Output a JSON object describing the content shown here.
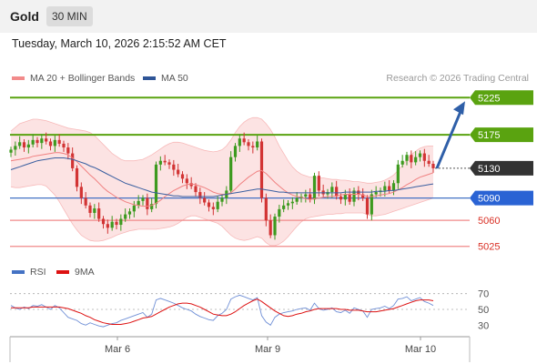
{
  "header": {
    "symbol": "Gold",
    "timeframe": "30 MIN"
  },
  "datetime": "Tuesday, March 10, 2026 2:15:52 AM CET",
  "legend": {
    "ma20": {
      "label": "MA 20 + Bollinger Bands",
      "color": "#f28b8b"
    },
    "ma50": {
      "label": "MA 50",
      "color": "#2f5597"
    }
  },
  "credit": "Research © 2026 Trading Central",
  "chart_data": {
    "type": "candlestick",
    "price_ylim": [
      5010,
      5240
    ],
    "x_ticks": [
      "Mar 6",
      "Mar 9",
      "Mar 10"
    ],
    "levels": [
      {
        "label": "5225",
        "value": 5225,
        "kind": "resistance",
        "color": "#5aa310"
      },
      {
        "label": "5175",
        "value": 5175,
        "kind": "resistance",
        "color": "#5aa310"
      },
      {
        "label": "5130",
        "value": 5130,
        "kind": "last",
        "color": "#333333"
      },
      {
        "label": "5090",
        "value": 5090,
        "kind": "pivot",
        "color": "#4472c4"
      },
      {
        "label": "5060",
        "value": 5060,
        "kind": "support",
        "color": "#e05050"
      },
      {
        "label": "5025",
        "value": 5025,
        "kind": "support",
        "color": "#e05050"
      }
    ],
    "closes": [
      5155,
      5160,
      5165,
      5158,
      5162,
      5168,
      5164,
      5170,
      5166,
      5160,
      5168,
      5163,
      5158,
      5150,
      5130,
      5105,
      5090,
      5080,
      5070,
      5076,
      5062,
      5055,
      5050,
      5058,
      5054,
      5062,
      5068,
      5072,
      5080,
      5086,
      5090,
      5075,
      5082,
      5135,
      5140,
      5138,
      5135,
      5128,
      5122,
      5116,
      5110,
      5106,
      5098,
      5090,
      5084,
      5078,
      5075,
      5085,
      5090,
      5100,
      5145,
      5160,
      5170,
      5165,
      5160,
      5158,
      5166,
      5090,
      5060,
      5040,
      5065,
      5075,
      5080,
      5083,
      5085,
      5090,
      5092,
      5095,
      5088,
      5120,
      5100,
      5095,
      5098,
      5105,
      5092,
      5088,
      5095,
      5085,
      5100,
      5095,
      5090,
      5068,
      5095,
      5098,
      5100,
      5106,
      5100,
      5110,
      5135,
      5140,
      5148,
      5138,
      5145,
      5150,
      5140,
      5136,
      5130
    ],
    "ma20": [
      5140,
      5141,
      5142,
      5143,
      5144,
      5146,
      5147,
      5148,
      5149,
      5150,
      5151,
      5151,
      5150,
      5148,
      5144,
      5139,
      5133,
      5127,
      5121,
      5116,
      5110,
      5104,
      5099,
      5095,
      5091,
      5088,
      5085,
      5083,
      5081,
      5080,
      5079,
      5079,
      5080,
      5083,
      5087,
      5092,
      5096,
      5100,
      5103,
      5106,
      5108,
      5109,
      5108,
      5106,
      5104,
      5101,
      5098,
      5096,
      5095,
      5095,
      5097,
      5102,
      5108,
      5113,
      5118,
      5122,
      5126,
      5127,
      5123,
      5117,
      5111,
      5106,
      5101,
      5097,
      5094,
      5092,
      5091,
      5089,
      5088,
      5089,
      5090,
      5091,
      5092,
      5092,
      5093,
      5094,
      5095,
      5095,
      5095,
      5095,
      5094,
      5092,
      5092,
      5093,
      5094,
      5095,
      5096,
      5098,
      5101,
      5104,
      5108,
      5111,
      5115,
      5118,
      5120,
      5122,
      5124
    ],
    "ma50": [
      5128,
      5130,
      5132,
      5134,
      5136,
      5138,
      5140,
      5141,
      5142,
      5143,
      5144,
      5144,
      5144,
      5143,
      5142,
      5140,
      5138,
      5136,
      5133,
      5131,
      5128,
      5125,
      5122,
      5119,
      5116,
      5113,
      5110,
      5108,
      5106,
      5104,
      5102,
      5100,
      5098,
      5097,
      5096,
      5095,
      5094,
      5093,
      5093,
      5092,
      5092,
      5092,
      5092,
      5092,
      5092,
      5092,
      5092,
      5093,
      5094,
      5095,
      5096,
      5097,
      5098,
      5099,
      5100,
      5101,
      5102,
      5102,
      5101,
      5100,
      5099,
      5098,
      5098,
      5097,
      5097,
      5097,
      5097,
      5097,
      5097,
      5097,
      5097,
      5097,
      5097,
      5097,
      5097,
      5097,
      5098,
      5098,
      5098,
      5098,
      5098,
      5098,
      5098,
      5099,
      5099,
      5099,
      5100,
      5100,
      5101,
      5102,
      5103,
      5104,
      5105,
      5106,
      5107,
      5108,
      5109
    ],
    "bb_upper": [
      5180,
      5185,
      5190,
      5192,
      5194,
      5196,
      5196,
      5195,
      5194,
      5192,
      5190,
      5188,
      5186,
      5184,
      5183,
      5182,
      5181,
      5180,
      5178,
      5174,
      5168,
      5162,
      5156,
      5150,
      5146,
      5142,
      5140,
      5140,
      5140,
      5141,
      5142,
      5145,
      5148,
      5152,
      5156,
      5160,
      5163,
      5165,
      5165,
      5164,
      5162,
      5160,
      5158,
      5156,
      5154,
      5153,
      5152,
      5153,
      5155,
      5160,
      5168,
      5178,
      5186,
      5192,
      5196,
      5198,
      5198,
      5196,
      5190,
      5182,
      5172,
      5160,
      5150,
      5140,
      5132,
      5126,
      5122,
      5120,
      5118,
      5118,
      5117,
      5117,
      5116,
      5115,
      5115,
      5114,
      5114,
      5113,
      5112,
      5112,
      5111,
      5110,
      5110,
      5111,
      5112,
      5114,
      5117,
      5121,
      5127,
      5134,
      5142,
      5148,
      5153,
      5157,
      5159,
      5160,
      5160
    ],
    "bb_lower": [
      5105,
      5104,
      5104,
      5105,
      5106,
      5107,
      5108,
      5108,
      5106,
      5100,
      5094,
      5085,
      5075,
      5065,
      5055,
      5047,
      5040,
      5036,
      5033,
      5032,
      5032,
      5033,
      5035,
      5037,
      5040,
      5042,
      5044,
      5046,
      5047,
      5048,
      5048,
      5048,
      5048,
      5048,
      5049,
      5050,
      5051,
      5053,
      5056,
      5060,
      5064,
      5066,
      5066,
      5064,
      5062,
      5060,
      5058,
      5056,
      5052,
      5046,
      5040,
      5036,
      5034,
      5033,
      5034,
      5036,
      5038,
      5036,
      5030,
      5026,
      5026,
      5028,
      5032,
      5038,
      5045,
      5052,
      5058,
      5062,
      5064,
      5065,
      5066,
      5067,
      5068,
      5068,
      5069,
      5069,
      5070,
      5070,
      5070,
      5070,
      5070,
      5068,
      5066,
      5066,
      5067,
      5068,
      5070,
      5072,
      5074,
      5076,
      5078,
      5080,
      5082,
      5084,
      5086,
      5088,
      5090
    ],
    "projection": {
      "from": 5130,
      "to": 5225
    },
    "rsi": {
      "legend_rsi": {
        "label": "RSI",
        "color": "#4472c4"
      },
      "legend_ma": {
        "label": "9MA",
        "color": "#dd1111"
      },
      "ylim": [
        20,
        80
      ],
      "ticks": [
        "70",
        "50",
        "30"
      ],
      "rsi_values": [
        55,
        52,
        50,
        53,
        51,
        55,
        54,
        56,
        53,
        50,
        55,
        52,
        46,
        40,
        38,
        36,
        32,
        30,
        33,
        31,
        29,
        28,
        30,
        32,
        33,
        36,
        38,
        40,
        42,
        44,
        46,
        40,
        44,
        62,
        64,
        62,
        60,
        58,
        55,
        52,
        50,
        48,
        44,
        41,
        39,
        37,
        36,
        42,
        45,
        50,
        63,
        66,
        68,
        66,
        64,
        62,
        65,
        42,
        34,
        30,
        40,
        44,
        46,
        47,
        48,
        50,
        51,
        52,
        49,
        58,
        51,
        49,
        50,
        52,
        47,
        46,
        49,
        45,
        52,
        50,
        48,
        40,
        50,
        51,
        52,
        54,
        51,
        55,
        63,
        64,
        66,
        61,
        63,
        65,
        60,
        58,
        55
      ],
      "ma_values": [
        52,
        52,
        52,
        52,
        52,
        53,
        53,
        53,
        53,
        53,
        53,
        53,
        52,
        51,
        49,
        47,
        45,
        42,
        40,
        37,
        35,
        33,
        32,
        31,
        31,
        31,
        32,
        33,
        35,
        37,
        39,
        40,
        41,
        44,
        47,
        50,
        53,
        55,
        57,
        58,
        58,
        57,
        55,
        53,
        50,
        47,
        44,
        43,
        42,
        42,
        44,
        47,
        51,
        55,
        58,
        61,
        63,
        60,
        56,
        52,
        48,
        45,
        42,
        41,
        42,
        44,
        45,
        47,
        48,
        50,
        51,
        51,
        51,
        51,
        51,
        50,
        50,
        49,
        49,
        49,
        48,
        47,
        47,
        47,
        48,
        49,
        50,
        51,
        53,
        55,
        57,
        59,
        61,
        62,
        62,
        62,
        61
      ]
    }
  }
}
